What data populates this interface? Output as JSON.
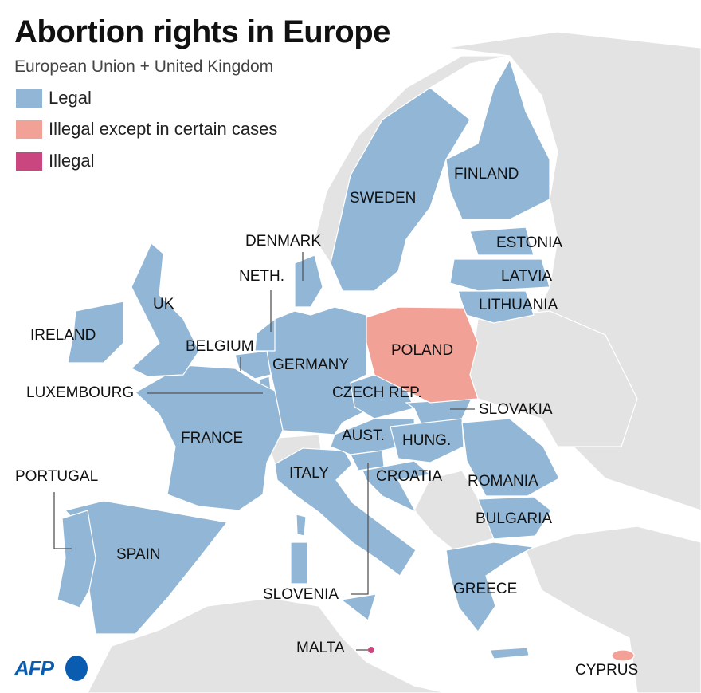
{
  "title": "Abortion rights in Europe",
  "subtitle": "European Union + United Kingdom",
  "legend": [
    {
      "label": "Legal",
      "color": "#92b6d5"
    },
    {
      "label": "Illegal except in certain cases",
      "color": "#f2a196"
    },
    {
      "label": "Illegal",
      "color": "#c9467f"
    }
  ],
  "countries": {
    "sweden": {
      "label": "SWEDEN",
      "status": "Legal"
    },
    "finland": {
      "label": "FINLAND",
      "status": "Legal"
    },
    "denmark": {
      "label": "DENMARK",
      "status": "Legal"
    },
    "estonia": {
      "label": "ESTONIA",
      "status": "Legal"
    },
    "latvia": {
      "label": "LATVIA",
      "status": "Legal"
    },
    "lithuania": {
      "label": "LITHUANIA",
      "status": "Legal"
    },
    "neth": {
      "label": "NETH.",
      "status": "Legal"
    },
    "uk": {
      "label": "UK",
      "status": "Legal"
    },
    "ireland": {
      "label": "IRELAND",
      "status": "Legal"
    },
    "belgium": {
      "label": "BELGIUM",
      "status": "Legal"
    },
    "germany": {
      "label": "GERMANY",
      "status": "Legal"
    },
    "poland": {
      "label": "POLAND",
      "status": "Illegal except in certain cases"
    },
    "luxembourg": {
      "label": "LUXEMBOURG",
      "status": "Legal"
    },
    "czech": {
      "label": "CZECH REP.",
      "status": "Legal"
    },
    "slovakia": {
      "label": "SLOVAKIA",
      "status": "Legal"
    },
    "france": {
      "label": "FRANCE",
      "status": "Legal"
    },
    "austria": {
      "label": "AUST.",
      "status": "Legal"
    },
    "hungary": {
      "label": "HUNG.",
      "status": "Legal"
    },
    "portugal": {
      "label": "PORTUGAL",
      "status": "Legal"
    },
    "italy": {
      "label": "ITALY",
      "status": "Legal"
    },
    "croatia": {
      "label": "CROATIA",
      "status": "Legal"
    },
    "romania": {
      "label": "ROMANIA",
      "status": "Legal"
    },
    "bulgaria": {
      "label": "BULGARIA",
      "status": "Legal"
    },
    "spain": {
      "label": "SPAIN",
      "status": "Legal"
    },
    "slovenia": {
      "label": "SLOVENIA",
      "status": "Legal"
    },
    "greece": {
      "label": "GREECE",
      "status": "Legal"
    },
    "malta": {
      "label": "MALTA",
      "status": "Illegal"
    },
    "cyprus": {
      "label": "CYPRUS",
      "status": "Illegal except in certain cases"
    }
  },
  "logo": "AFP"
}
